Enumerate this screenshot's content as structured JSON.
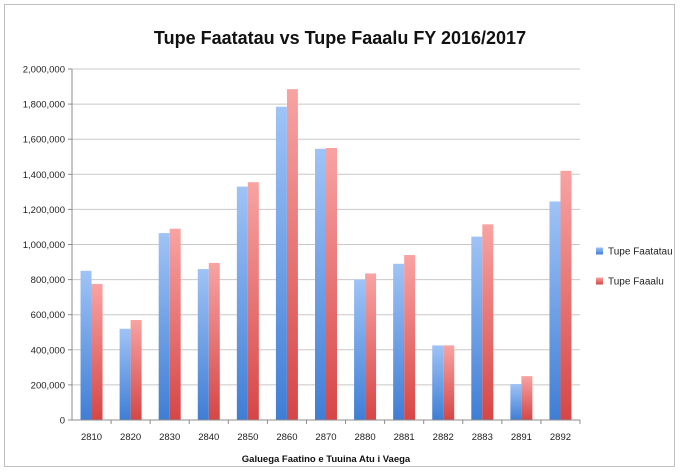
{
  "chart_data": {
    "type": "bar",
    "title": "Tupe Faatatau vs Tupe Faaalu FY 2016/2017",
    "xlabel": "Galuega Faatino e Tuuina Atu i Vaega",
    "ylabel": "",
    "ylim": [
      0,
      2000000
    ],
    "yticks": [
      "0",
      "200,000",
      "400,000",
      "600,000",
      "800,000",
      "1,000,000",
      "1,200,000",
      "1,400,000",
      "1,600,000",
      "1,800,000",
      "2,000,000"
    ],
    "categories": [
      "2810",
      "2820",
      "2830",
      "2840",
      "2850",
      "2860",
      "2870",
      "2880",
      "2881",
      "2882",
      "2883",
      "2891",
      "2892"
    ],
    "series": [
      {
        "name": "Tupe Faatatau",
        "values": [
          850000,
          520000,
          1065000,
          860000,
          1330000,
          1785000,
          1545000,
          800000,
          890000,
          425000,
          1045000,
          205000,
          1245000
        ]
      },
      {
        "name": "Tupe Faaalu",
        "values": [
          775000,
          570000,
          1090000,
          895000,
          1355000,
          1885000,
          1550000,
          835000,
          940000,
          425000,
          1115000,
          250000,
          1420000
        ]
      }
    ],
    "grid": true,
    "legend_position": "right"
  }
}
